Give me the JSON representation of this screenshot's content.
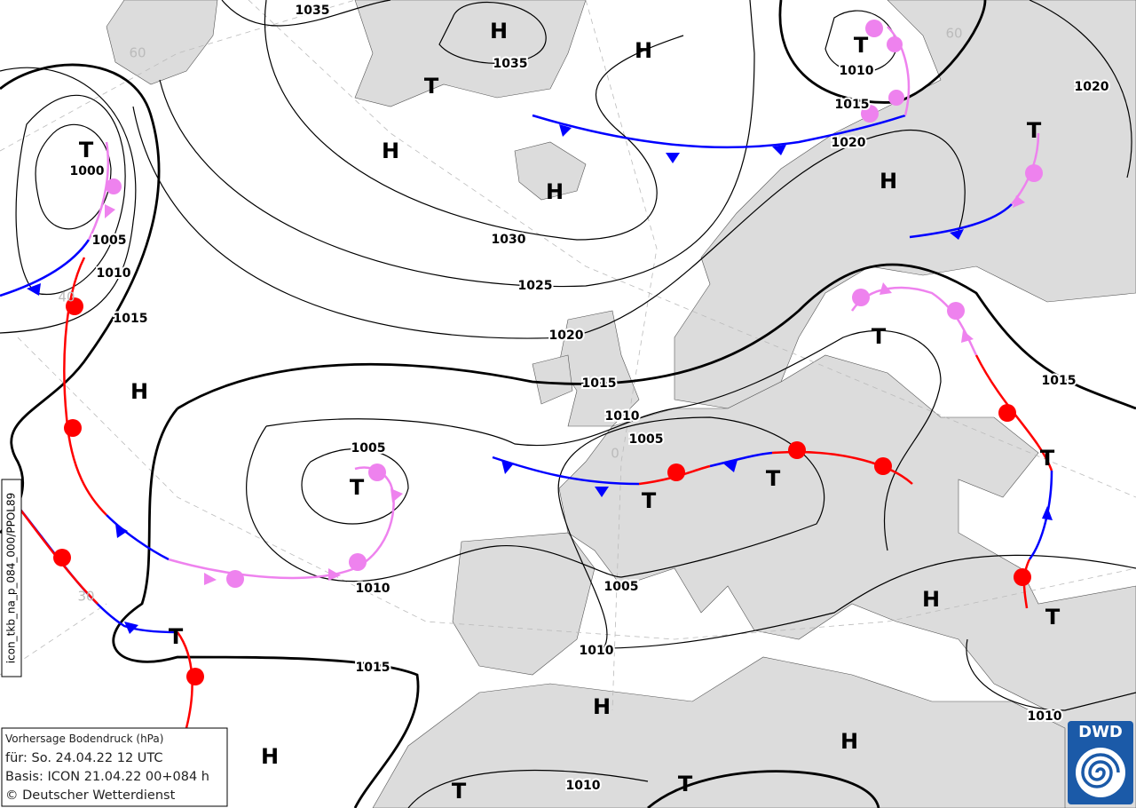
{
  "isobar_labels": [
    "1035",
    "1035",
    "1030",
    "1025",
    "1020",
    "1015",
    "1010",
    "1005",
    "1005",
    "1010",
    "1005",
    "1010",
    "1015",
    "1010",
    "1010",
    "1015",
    "1020",
    "1020",
    "1015",
    "1010",
    "1000",
    "1005",
    "1010",
    "1015"
  ],
  "pressure_centers": [
    "H",
    "H",
    "T",
    "H",
    "H",
    "T",
    "T",
    "T",
    "H",
    "H",
    "T",
    "T",
    "T",
    "T",
    "T",
    "H",
    "T",
    "T",
    "H",
    "H",
    "H",
    "T",
    "T"
  ],
  "grid_labels": [
    "60",
    "60",
    "40",
    "30",
    "0"
  ],
  "info": {
    "title": "Vorhersage Bodendruck (hPa)",
    "valid": "für:  So. 24.04.22  12 UTC",
    "basis": "Basis: ICON  21.04.22 00+084 h",
    "copyright": "© Deutscher Wetterdienst"
  },
  "side_label": "icon_tkb_na_p_084_000/PPOL89",
  "logo": "DWD"
}
